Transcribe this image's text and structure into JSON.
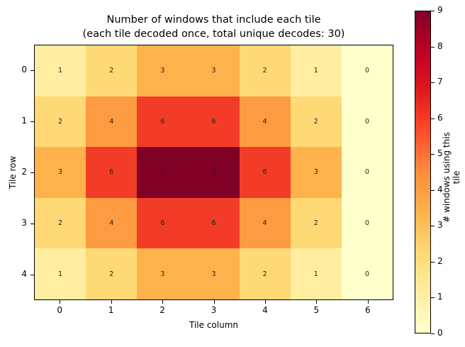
{
  "chart_data": {
    "type": "heatmap",
    "title": "Number of windows that include each tile",
    "subtitle": "(each tile decoded once, total unique decodes: 30)",
    "xlabel": "Tile column",
    "ylabel": "Tile row",
    "x_ticks": [
      "0",
      "1",
      "2",
      "3",
      "4",
      "5",
      "6"
    ],
    "y_ticks": [
      "0",
      "1",
      "2",
      "3",
      "4"
    ],
    "values": [
      [
        1,
        2,
        3,
        3,
        2,
        1,
        0
      ],
      [
        2,
        4,
        6,
        6,
        4,
        2,
        0
      ],
      [
        3,
        6,
        9,
        9,
        6,
        3,
        0
      ],
      [
        2,
        4,
        6,
        6,
        4,
        2,
        0
      ],
      [
        1,
        2,
        3,
        3,
        2,
        1,
        0
      ]
    ],
    "colormap": "YlOrRd",
    "vmin": 0,
    "vmax": 9,
    "colorbar": {
      "label": "# windows using this tile",
      "ticks": [
        "0",
        "1",
        "2",
        "3",
        "4",
        "5",
        "6",
        "7",
        "8",
        "9"
      ]
    },
    "annotations": "cell values shown in each tile",
    "grid": false
  },
  "colors": {
    "0": "#ffffcc",
    "1": "#ffeda0",
    "2": "#fed976",
    "3": "#feb24c",
    "4": "#fd9b42",
    "6": "#f23c27",
    "9": "#800026"
  }
}
